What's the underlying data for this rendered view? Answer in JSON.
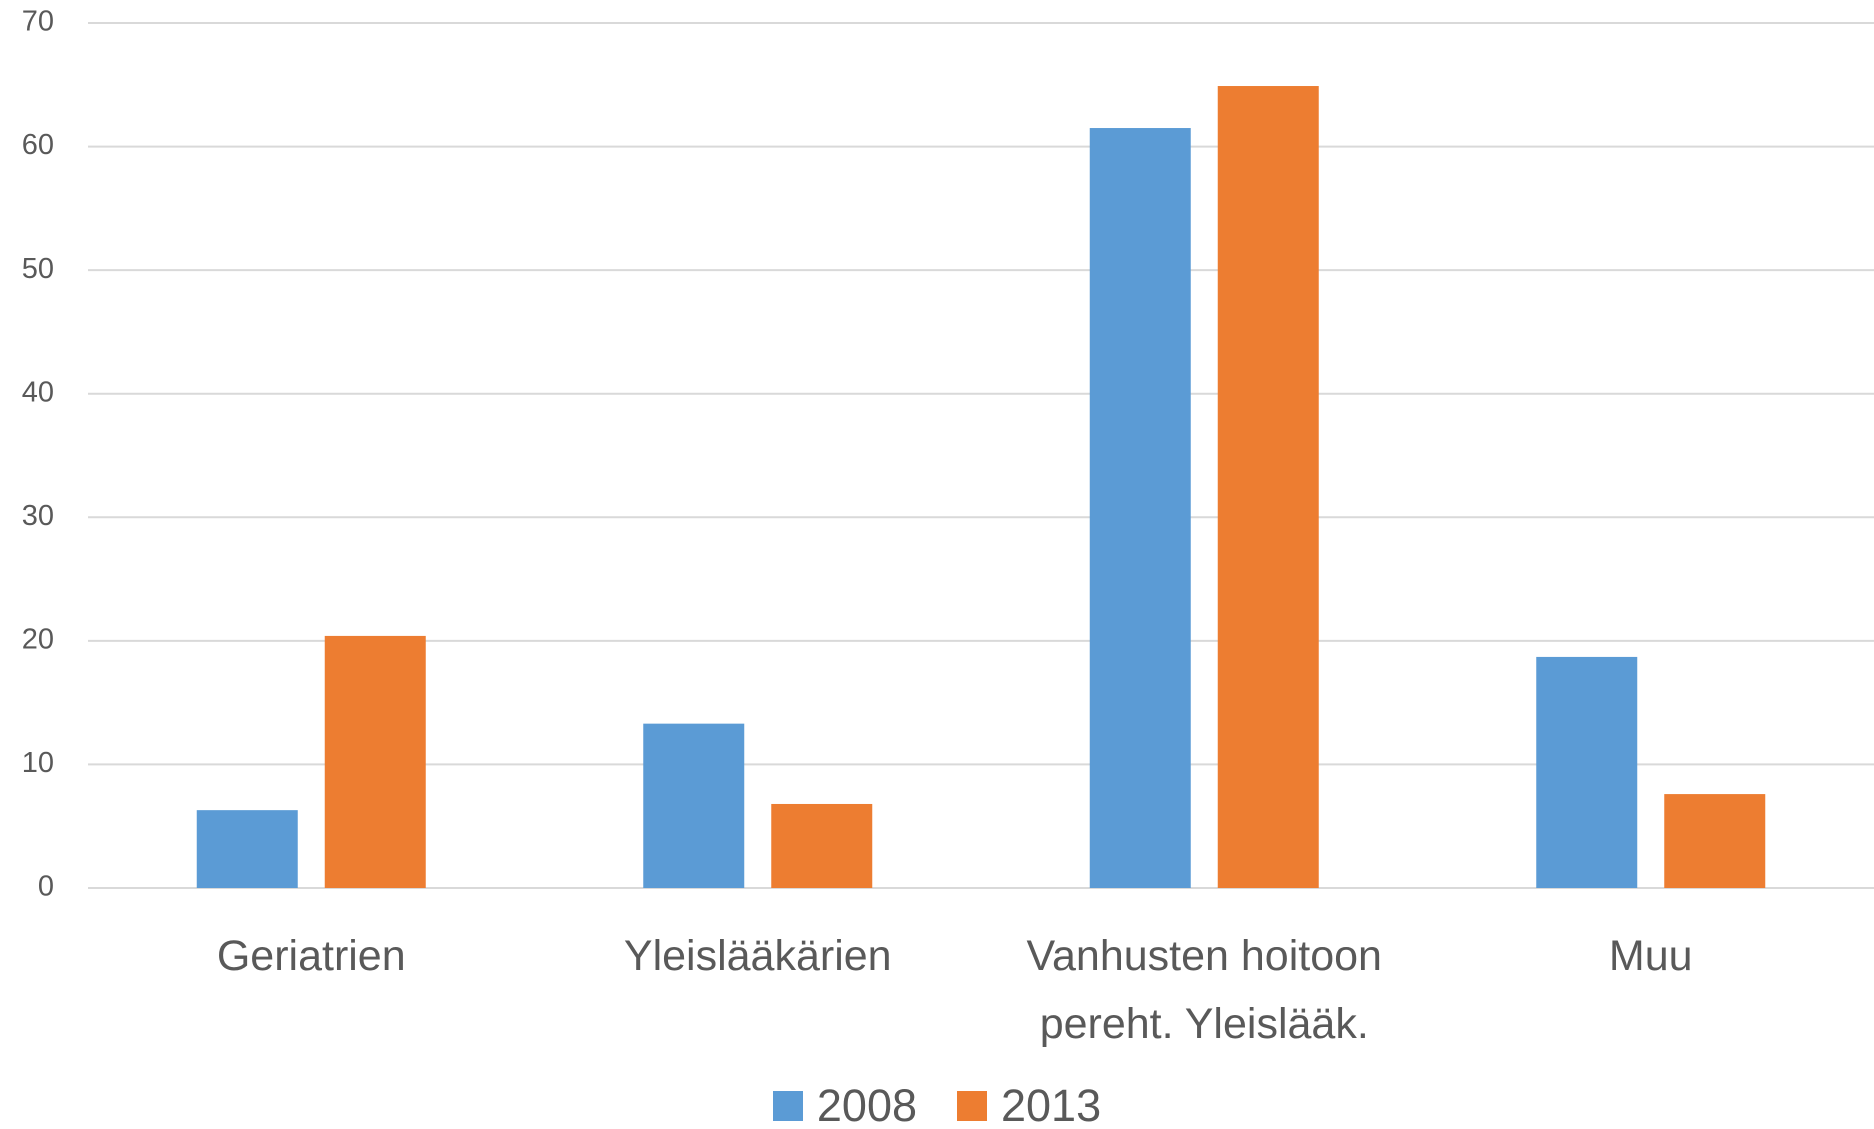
{
  "chart_data": {
    "type": "bar",
    "categories": [
      "Geriatrien",
      "Yleislääkärien",
      "Vanhusten hoitoon pereht. Yleislääk.",
      "Muu"
    ],
    "series": [
      {
        "name": "2008",
        "color": "#5b9bd5",
        "values": [
          6.3,
          13.3,
          61.5,
          18.7
        ]
      },
      {
        "name": "2013",
        "color": "#ed7d31",
        "values": [
          20.4,
          6.8,
          64.9,
          7.6
        ]
      }
    ],
    "ylim": [
      0,
      70
    ],
    "yticks": [
      0,
      10,
      20,
      30,
      40,
      50,
      60,
      70
    ],
    "grid": true,
    "legend": "bottom"
  }
}
